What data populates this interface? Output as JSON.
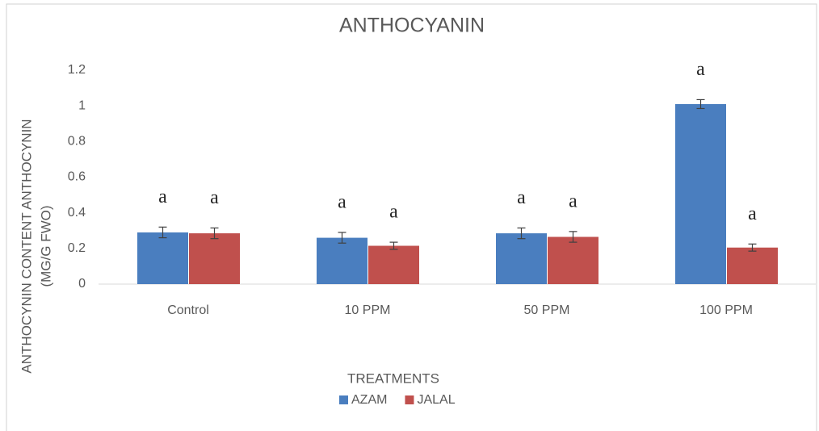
{
  "chart_data": {
    "type": "bar",
    "title": "ANTHOCYANIN",
    "ylabel": [
      "ANTHOCYNIN CONTENT ANTHOCYNIN",
      "(MG/G FWO)"
    ],
    "xlabel": "TREATMENTS",
    "categories": [
      "Control",
      "10 PPM",
      "50 PPM",
      "100 PPM"
    ],
    "series": [
      {
        "name": "AZAM",
        "color": "#4a7ebf",
        "values": [
          0.29,
          0.26,
          0.285,
          1.01
        ],
        "errors": [
          0.03,
          0.03,
          0.03,
          0.025
        ],
        "letters": [
          "a",
          "a",
          "a",
          "a"
        ]
      },
      {
        "name": "JALAL",
        "color": "#c0504d",
        "values": [
          0.285,
          0.215,
          0.265,
          0.205
        ],
        "errors": [
          0.03,
          0.02,
          0.03,
          0.02
        ],
        "letters": [
          "a",
          "a",
          "a",
          "a"
        ]
      }
    ],
    "ylim": [
      0,
      1.2
    ],
    "yticks": [
      0,
      0.2,
      0.4,
      0.6,
      0.8,
      1,
      1.2
    ],
    "grid": false,
    "legend": "bottom"
  }
}
